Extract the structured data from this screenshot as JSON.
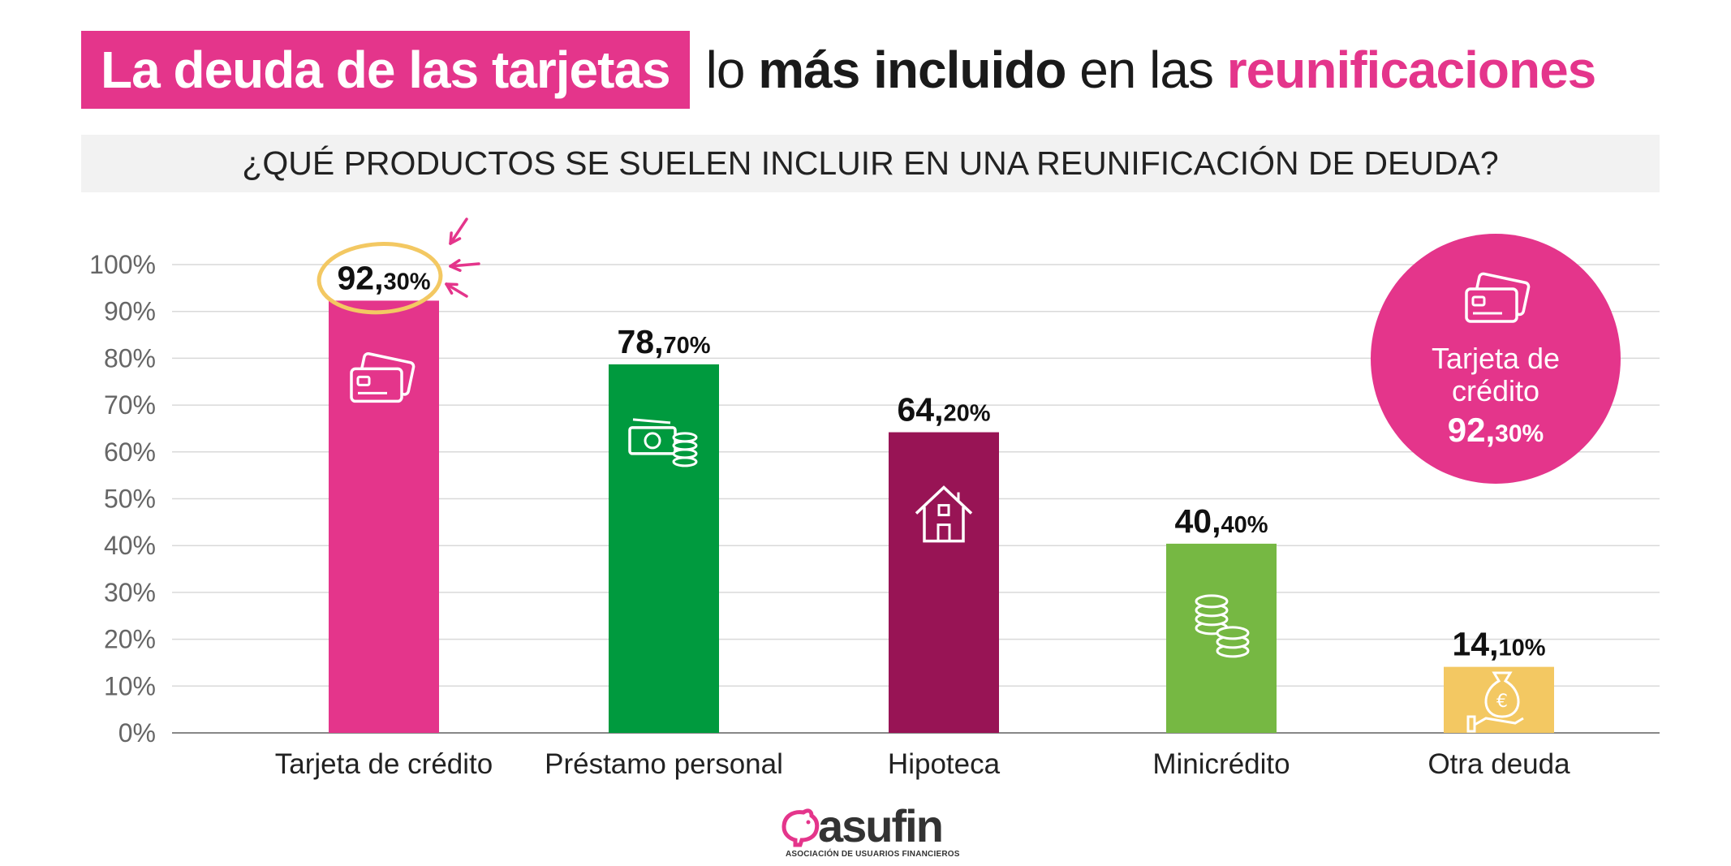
{
  "header": {
    "title_highlight": "La deuda de las tarjetas",
    "title_part1": "lo ",
    "title_bold": "más incluido",
    "title_part2": " en las ",
    "title_pink": "reunificaciones"
  },
  "subtitle": "¿QUÉ PRODUCTOS SE SUELEN INCLUIR EN UNA REUNIFICACIÓN DE DEUDA?",
  "colors": {
    "pink": "#e4358b",
    "green": "#009a3e",
    "maroon": "#981455",
    "lightgreen": "#76b843",
    "yellow": "#f3c862",
    "circle_outline": "#f3c862"
  },
  "chart_data": {
    "type": "bar",
    "title": "¿QUÉ PRODUCTOS SE SUELEN INCLUIR EN UNA REUNIFICACIÓN DE DEUDA?",
    "xlabel": "",
    "ylabel": "",
    "ylim": [
      0,
      100
    ],
    "grid": true,
    "yticks": [
      "0%",
      "10%",
      "20%",
      "30%",
      "40%",
      "50%",
      "60%",
      "70%",
      "80%",
      "90%",
      "100%"
    ],
    "categories": [
      "Tarjeta de crédito",
      "Préstamo personal",
      "Hipoteca",
      "Minicrédito",
      "Otra deuda"
    ],
    "values": [
      92.3,
      78.7,
      64.2,
      40.4,
      14.1
    ],
    "value_labels": [
      {
        "int": "92,",
        "dec": "30%"
      },
      {
        "int": "78,",
        "dec": "70%"
      },
      {
        "int": "64,",
        "dec": "20%"
      },
      {
        "int": "40,",
        "dec": "40%"
      },
      {
        "int": "14,",
        "dec": "10%"
      }
    ],
    "bar_colors": [
      "#e4358b",
      "#009a3e",
      "#981455",
      "#76b843",
      "#f3c862"
    ],
    "bar_icons": [
      "credit-card-icon",
      "money-icon",
      "house-icon",
      "coins-icon",
      "money-bag-icon"
    ],
    "highlight": {
      "label_line1": "Tarjeta de",
      "label_line2": "crédito",
      "value_int": "92,",
      "value_dec": "30%"
    }
  },
  "logo": {
    "name": "asufin",
    "subtitle": "ASOCIACIÓN DE USUARIOS FINANCIEROS"
  }
}
